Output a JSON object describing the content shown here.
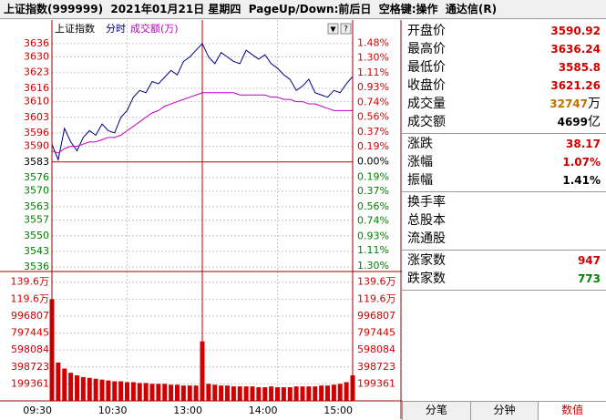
{
  "title_bar": "上证指数(999999)  2021年01月21日 星期四  PageUp/Down:前后日  空格键:操作  通达信(R)",
  "chart_data": [
    {
      "type": "line",
      "title": "上证指数",
      "x": [
        0,
        5,
        10,
        15,
        20,
        25,
        30,
        35,
        40,
        45,
        50,
        55,
        60,
        65,
        70,
        75,
        80,
        85,
        90,
        95,
        100,
        105,
        110,
        115,
        120,
        125,
        130,
        135,
        140,
        145,
        150,
        155,
        160,
        165,
        170,
        175,
        180,
        185,
        190,
        195,
        200,
        205,
        210,
        215,
        220,
        225,
        230,
        235,
        240
      ],
      "series": [
        {
          "name": "分时",
          "color": "#000080",
          "values": [
            3590.9,
            3584,
            3598,
            3592,
            3588,
            3594,
            3597,
            3595,
            3600,
            3597,
            3596,
            3603,
            3606,
            3612,
            3615,
            3614,
            3619,
            3618,
            3621,
            3624,
            3622,
            3628,
            3630,
            3633,
            3636,
            3630,
            3627,
            3632,
            3630,
            3628,
            3627,
            3633,
            3631,
            3629,
            3631,
            3627,
            3625,
            3622,
            3620,
            3615,
            3617,
            3620,
            3614,
            3613,
            3612,
            3615,
            3614,
            3618,
            3621.26
          ]
        },
        {
          "name": "成交额(万)",
          "color": "#c000c0",
          "values": [
            3588,
            3587,
            3589,
            3590,
            3590,
            3591,
            3592,
            3592,
            3593,
            3594,
            3594,
            3595,
            3597,
            3599,
            3601,
            3603,
            3605,
            3606,
            3608,
            3609,
            3610,
            3611,
            3612,
            3613,
            3614,
            3614,
            3614,
            3614,
            3614,
            3614,
            3613,
            3613,
            3613,
            3613,
            3613,
            3612,
            3612,
            3611,
            3611,
            3610,
            3610,
            3609,
            3609,
            3608,
            3607,
            3606,
            3606,
            3606,
            3606
          ]
        }
      ],
      "xlim": [
        0,
        240
      ],
      "ylim": [
        3534,
        3640
      ],
      "yticks": [
        3636,
        3630,
        3623,
        3616,
        3610,
        3603,
        3596,
        3590,
        3583,
        3576,
        3570,
        3563,
        3557,
        3550,
        3543,
        3536
      ],
      "y2lim": [
        -1.37,
        1.59
      ],
      "y2ticks": [
        {
          "value": 1.48,
          "label": "1.48%"
        },
        {
          "value": 1.3,
          "label": "1.30%"
        },
        {
          "value": 1.11,
          "label": "1.11%"
        },
        {
          "value": 0.93,
          "label": "0.93%"
        },
        {
          "value": 0.74,
          "label": "0.74%"
        },
        {
          "value": 0.56,
          "label": "0.56%"
        },
        {
          "value": 0.37,
          "label": "0.37%"
        },
        {
          "value": 0.19,
          "label": "0.19%"
        },
        {
          "value": 0,
          "label": "0.00%"
        },
        {
          "value": -0.19,
          "label": "0.19%"
        },
        {
          "value": -0.37,
          "label": "0.37%"
        },
        {
          "value": -0.56,
          "label": "0.56%"
        },
        {
          "value": -0.74,
          "label": "0.74%"
        },
        {
          "value": -0.93,
          "label": "0.93%"
        },
        {
          "value": -1.11,
          "label": "1.11%"
        },
        {
          "value": -1.3,
          "label": "1.30%"
        }
      ],
      "grid": true
    },
    {
      "type": "bar",
      "color": "#d00000",
      "x": [
        0,
        5,
        10,
        15,
        20,
        25,
        30,
        35,
        40,
        45,
        50,
        55,
        60,
        65,
        70,
        75,
        80,
        85,
        90,
        95,
        100,
        105,
        110,
        115,
        120,
        125,
        130,
        135,
        140,
        145,
        150,
        155,
        160,
        165,
        170,
        175,
        180,
        185,
        190,
        195,
        200,
        205,
        210,
        215,
        220,
        225,
        230,
        235,
        240
      ],
      "values": [
        1196000,
        450000,
        380000,
        330000,
        300000,
        280000,
        270000,
        260000,
        250000,
        240000,
        230000,
        230000,
        220000,
        220000,
        210000,
        210000,
        200000,
        200000,
        200000,
        190000,
        190000,
        180000,
        180000,
        180000,
        700000,
        200000,
        190000,
        180000,
        180000,
        170000,
        170000,
        170000,
        170000,
        160000,
        160000,
        170000,
        160000,
        160000,
        160000,
        170000,
        170000,
        170000,
        170000,
        180000,
        180000,
        190000,
        200000,
        220000,
        300000
      ],
      "xlim": [
        0,
        240
      ],
      "xticks": [
        {
          "value": 0,
          "label": "09:30"
        },
        {
          "value": 60,
          "label": "10:30"
        },
        {
          "value": 120,
          "label": "13:00"
        },
        {
          "value": 180,
          "label": "14:00"
        },
        {
          "value": 240,
          "label": "15:00"
        }
      ],
      "ylim": [
        0,
        1500000
      ],
      "yticks": [
        {
          "value": 1396000,
          "label": "139.6万"
        },
        {
          "value": 1196000,
          "label": "119.6万"
        },
        996807,
        797445,
        598084,
        398723,
        199361
      ],
      "grid": true
    }
  ],
  "panel": {
    "rows": [
      {
        "label": "开盘价",
        "value": 3590.92
      },
      {
        "label": "最高价",
        "value": 3636.24
      },
      {
        "label": "最低价",
        "value": 3585.8
      },
      {
        "label": "收盘价",
        "value": 3621.26
      },
      {
        "label": "成交量",
        "value": 32747,
        "unit": "万"
      },
      {
        "label": "成交额",
        "value": 4699,
        "unit": "亿"
      },
      {
        "label": "涨跌",
        "value": 38.17
      },
      {
        "label": "涨幅",
        "value": "1.07%"
      },
      {
        "label": "振幅",
        "value": "1.41%"
      },
      {
        "label": "换手率"
      },
      {
        "label": "总股本"
      },
      {
        "label": "流通股"
      },
      {
        "label": "涨家数",
        "value": 947
      },
      {
        "label": "跌家数",
        "value": 773
      }
    ],
    "tabs": [
      "分笔",
      "分钟",
      "数值"
    ]
  }
}
